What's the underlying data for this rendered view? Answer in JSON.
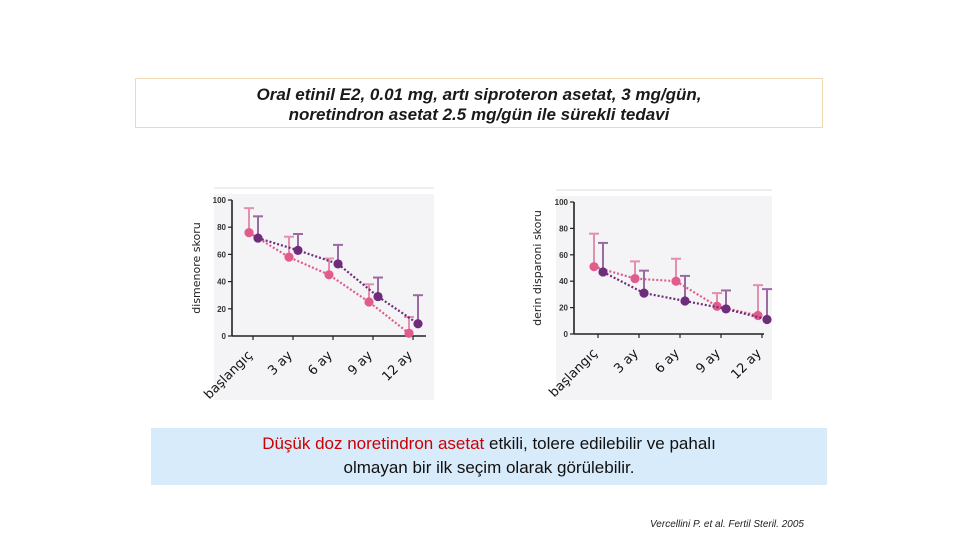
{
  "title": {
    "line1": "Oral etinil E2, 0.01 mg, artı siproteron asetat, 3 mg/gün,",
    "line2": "noretindron asetat 2.5 mg/gün ile sürekli tedavi"
  },
  "conclusion": {
    "line1_highlight": "Düşük doz noretindron asetat",
    "line1_rest": " etkili, tolere edilebilir ve pahalı",
    "line2": "olmayan bir ilk seçim olarak görülebilir."
  },
  "citation": "Vercellini P. et al. Fertil Steril. 2005",
  "colors": {
    "series_a": "#e15c8c",
    "series_b": "#6e2c7a",
    "error_a": "#e28fb0",
    "error_b": "#9b6aa3",
    "highlight_text": "#cc0000",
    "conclusion_bg": "#d7ebfb"
  },
  "chart_data": [
    {
      "type": "line",
      "ylabel": "dismenore skoru",
      "ylim": [
        0,
        100
      ],
      "yticks": [
        "0",
        "20",
        "40",
        "60",
        "80",
        "100"
      ],
      "categories": [
        "başlangıç",
        "3 ay",
        "6 ay",
        "9 ay",
        "12 ay"
      ],
      "series": [
        {
          "values": [
            76,
            58,
            45,
            25,
            2
          ],
          "err": [
            18,
            15,
            12,
            13,
            12
          ]
        },
        {
          "values": [
            72,
            63,
            53,
            29,
            9
          ],
          "err": [
            16,
            12,
            14,
            14,
            21
          ]
        }
      ]
    },
    {
      "type": "line",
      "ylabel": "derin disparoni skoru",
      "ylim": [
        0,
        100
      ],
      "yticks": [
        "0",
        "20",
        "40",
        "60",
        "80",
        "100"
      ],
      "categories": [
        "başlangıç",
        "3 ay",
        "6 ay",
        "9 ay",
        "12 ay"
      ],
      "series": [
        {
          "values": [
            51,
            42,
            40,
            21,
            14
          ],
          "err": [
            25,
            13,
            17,
            10,
            23
          ]
        },
        {
          "values": [
            47,
            31,
            25,
            19,
            11
          ],
          "err": [
            22,
            17,
            19,
            14,
            23
          ]
        }
      ]
    }
  ]
}
